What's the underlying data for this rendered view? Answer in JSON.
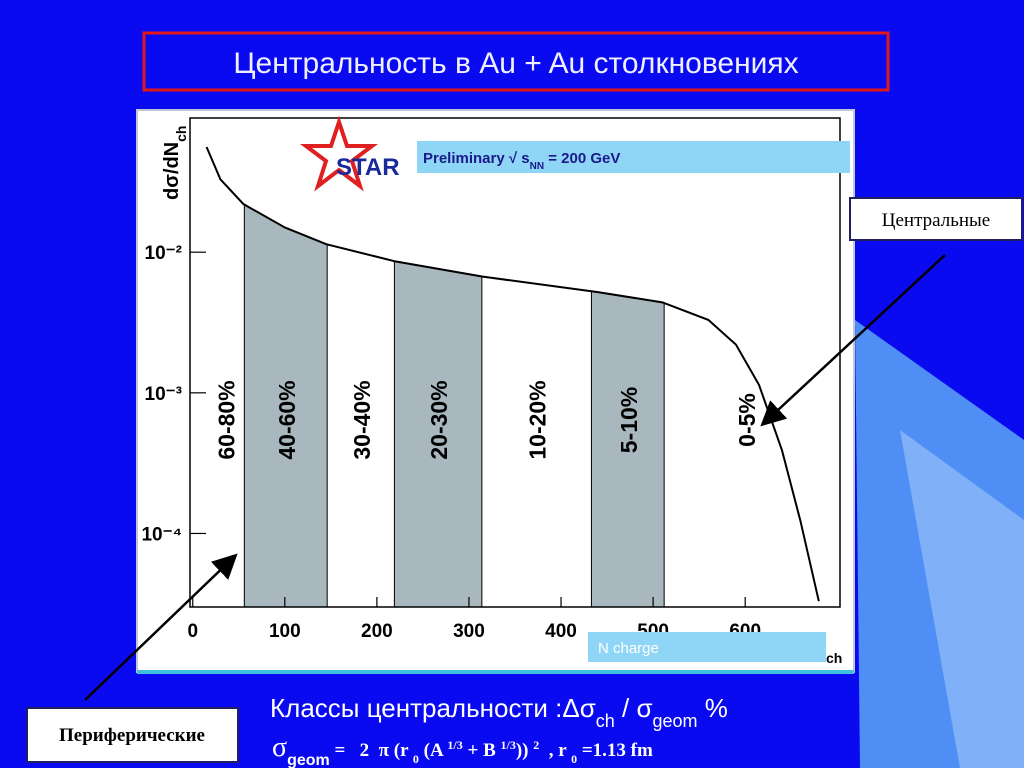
{
  "slide": {
    "title": "Центральность в Au + Au столкновениях",
    "central": "Центральные",
    "peripheral": "Периферические",
    "caption": [
      "Классы центральности :Δσ",
      "ch",
      " / σ",
      "geom",
      " %"
    ],
    "formula": [
      "σ",
      "geom",
      " =   2  π (r ",
      "0",
      " (A ",
      "1/3",
      " + B ",
      "1/3",
      ")) ",
      "2",
      "  , r ",
      "0",
      " =1.13 fm"
    ]
  },
  "chart_data": {
    "type": "line",
    "logo": "STAR",
    "note": [
      "Preliminary √ s",
      "NN",
      " = 200 GeV"
    ],
    "y_label": [
      "dσ/dN",
      "ch"
    ],
    "x_label": "N charge",
    "x_label_sub": "ch",
    "x": [
      15,
      30,
      55,
      100,
      145,
      220,
      315,
      440,
      510,
      560,
      590,
      615,
      640,
      660,
      680
    ],
    "values": [
      0.056,
      0.033,
      0.022,
      0.015,
      0.0114,
      0.0086,
      0.0067,
      0.0052,
      0.0044,
      0.0033,
      0.0022,
      0.00114,
      0.00039,
      0.000123,
      3.3e-05
    ],
    "color": "#000000",
    "xlim": [
      -3,
      703
    ],
    "ylim": [
      3e-05,
      0.09
    ],
    "log_y": true,
    "xticks": [
      0,
      100,
      200,
      300,
      400,
      500,
      600
    ],
    "yticks": [
      {
        "value": 0.01,
        "label": "10⁻²"
      },
      {
        "value": 0.001,
        "label": "10⁻³"
      },
      {
        "value": 0.0001,
        "label": "10⁻⁴"
      }
    ],
    "bands": [
      {
        "label": "60-80%",
        "from": 15,
        "to": 56,
        "shaded": false
      },
      {
        "label": "40-60%",
        "from": 56,
        "to": 146,
        "shaded": true
      },
      {
        "label": "30-40%",
        "from": 146,
        "to": 219,
        "shaded": false
      },
      {
        "label": "20-30%",
        "from": 219,
        "to": 314,
        "shaded": true
      },
      {
        "label": "10-20%",
        "from": 314,
        "to": 433,
        "shaded": false
      },
      {
        "label": "5-10%",
        "from": 433,
        "to": 512,
        "shaded": true
      },
      {
        "label": "0-5%",
        "from": 512,
        "to": 690,
        "shaded": false
      }
    ],
    "band_color": "#a9b8bf"
  }
}
